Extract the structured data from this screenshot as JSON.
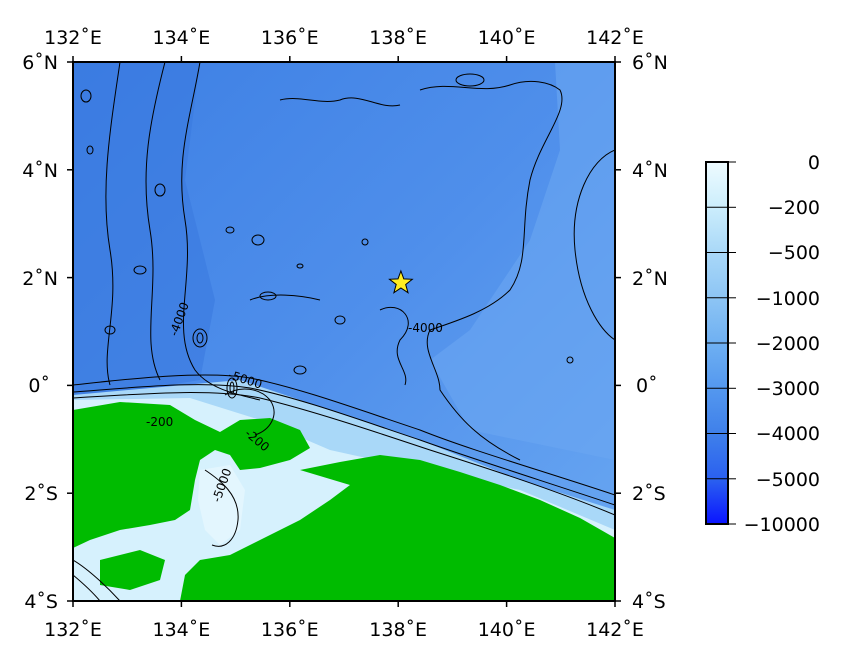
{
  "map": {
    "lon_ticks": [
      "132˚E",
      "134˚E",
      "136˚E",
      "138˚E",
      "140˚E",
      "142˚E"
    ],
    "lat_ticks": [
      "6˚N",
      "4˚N",
      "2˚N",
      "0˚",
      "2˚S",
      "4˚S"
    ],
    "contour_labels": [
      "-4000",
      "-4000",
      "-5000",
      "-200",
      "-200",
      "-5000"
    ],
    "marker": {
      "type": "star",
      "lon": 138.05,
      "lat": 1.9,
      "color": "#ffee22"
    },
    "colors": {
      "deep": "#3f83e6",
      "mid": "#5f9ff0",
      "shelf": "#c6e8fb",
      "land": "#00bb00"
    }
  },
  "colorbar": {
    "labels": [
      "0",
      "−200",
      "−500",
      "−1000",
      "−2000",
      "−3000",
      "−4000",
      "−5000",
      "−10000"
    ],
    "colors": [
      "#e8f8ff",
      "#c9ecfb",
      "#aad8f8",
      "#8cc4f5",
      "#6eaef2",
      "#5596ef",
      "#3f7fec",
      "#1f4ff0",
      "#0010ff"
    ]
  }
}
